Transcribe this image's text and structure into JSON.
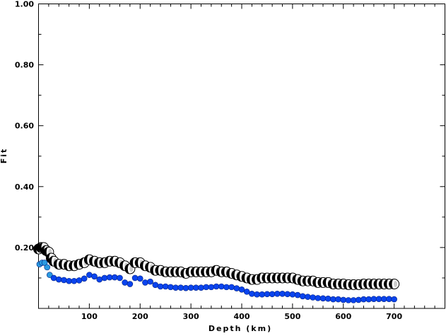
{
  "chart_data": {
    "type": "scatter",
    "title": "",
    "xlabel": "Depth (km)",
    "ylabel": "Fit",
    "xlim": [
      0,
      800
    ],
    "ylim": [
      0,
      1.0
    ],
    "xticks": [
      100,
      200,
      300,
      400,
      500,
      600,
      700
    ],
    "xtick_labels": [
      "100",
      "200",
      "300",
      "400",
      "500",
      "600",
      "700"
    ],
    "yticks": [
      0.2,
      0.4,
      0.6,
      0.8,
      1.0
    ],
    "ytick_labels": [
      "0.20",
      "0.40",
      "0.60",
      "0.80",
      "1.00"
    ],
    "grid": false,
    "series": [
      {
        "name": "fit-mechanism",
        "marker": "beachball",
        "color": "#000000",
        "x": [
          0,
          5,
          10,
          15,
          20,
          25,
          30,
          40,
          50,
          60,
          70,
          80,
          90,
          100,
          110,
          120,
          130,
          140,
          150,
          160,
          170,
          180,
          190,
          200,
          210,
          220,
          230,
          240,
          250,
          260,
          270,
          280,
          290,
          300,
          310,
          320,
          330,
          340,
          350,
          360,
          370,
          380,
          390,
          400,
          410,
          420,
          430,
          440,
          450,
          460,
          470,
          480,
          490,
          500,
          510,
          520,
          530,
          540,
          550,
          560,
          570,
          580,
          590,
          600,
          610,
          620,
          630,
          640,
          650,
          660,
          670,
          680,
          690,
          700
        ],
        "y": [
          0.195,
          0.2,
          0.2,
          0.19,
          0.185,
          0.165,
          0.155,
          0.145,
          0.145,
          0.14,
          0.14,
          0.145,
          0.15,
          0.16,
          0.155,
          0.15,
          0.15,
          0.155,
          0.155,
          0.15,
          0.14,
          0.13,
          0.15,
          0.15,
          0.14,
          0.135,
          0.125,
          0.125,
          0.12,
          0.12,
          0.12,
          0.12,
          0.115,
          0.12,
          0.12,
          0.12,
          0.12,
          0.12,
          0.125,
          0.12,
          0.12,
          0.115,
          0.11,
          0.105,
          0.1,
          0.095,
          0.095,
          0.1,
          0.1,
          0.1,
          0.1,
          0.1,
          0.1,
          0.1,
          0.095,
          0.09,
          0.09,
          0.09,
          0.085,
          0.085,
          0.085,
          0.08,
          0.08,
          0.08,
          0.078,
          0.078,
          0.078,
          0.08,
          0.08,
          0.08,
          0.08,
          0.08,
          0.08,
          0.08
        ]
      },
      {
        "name": "fit-blue",
        "marker": "circle",
        "color": "#0a44ee",
        "color_shallow": "#2a9ae0",
        "x": [
          2,
          7,
          12,
          17,
          22,
          30,
          40,
          50,
          60,
          70,
          80,
          90,
          100,
          110,
          120,
          130,
          140,
          150,
          160,
          170,
          180,
          190,
          200,
          210,
          220,
          230,
          240,
          250,
          260,
          270,
          280,
          290,
          300,
          310,
          320,
          330,
          340,
          350,
          360,
          370,
          380,
          390,
          400,
          410,
          420,
          430,
          440,
          450,
          460,
          470,
          480,
          490,
          500,
          510,
          520,
          530,
          540,
          550,
          560,
          570,
          580,
          590,
          600,
          610,
          620,
          630,
          640,
          650,
          660,
          670,
          680,
          690,
          700
        ],
        "y": [
          0.145,
          0.15,
          0.15,
          0.135,
          0.11,
          0.1,
          0.095,
          0.093,
          0.09,
          0.09,
          0.092,
          0.098,
          0.11,
          0.105,
          0.095,
          0.1,
          0.102,
          0.102,
          0.1,
          0.085,
          0.08,
          0.1,
          0.098,
          0.085,
          0.088,
          0.077,
          0.072,
          0.072,
          0.07,
          0.068,
          0.068,
          0.067,
          0.068,
          0.068,
          0.068,
          0.07,
          0.07,
          0.072,
          0.072,
          0.07,
          0.07,
          0.066,
          0.062,
          0.055,
          0.048,
          0.046,
          0.046,
          0.047,
          0.047,
          0.048,
          0.048,
          0.047,
          0.046,
          0.044,
          0.04,
          0.038,
          0.036,
          0.034,
          0.033,
          0.032,
          0.03,
          0.03,
          0.028,
          0.027,
          0.027,
          0.028,
          0.03,
          0.03,
          0.031,
          0.031,
          0.031,
          0.031,
          0.03
        ]
      }
    ]
  }
}
